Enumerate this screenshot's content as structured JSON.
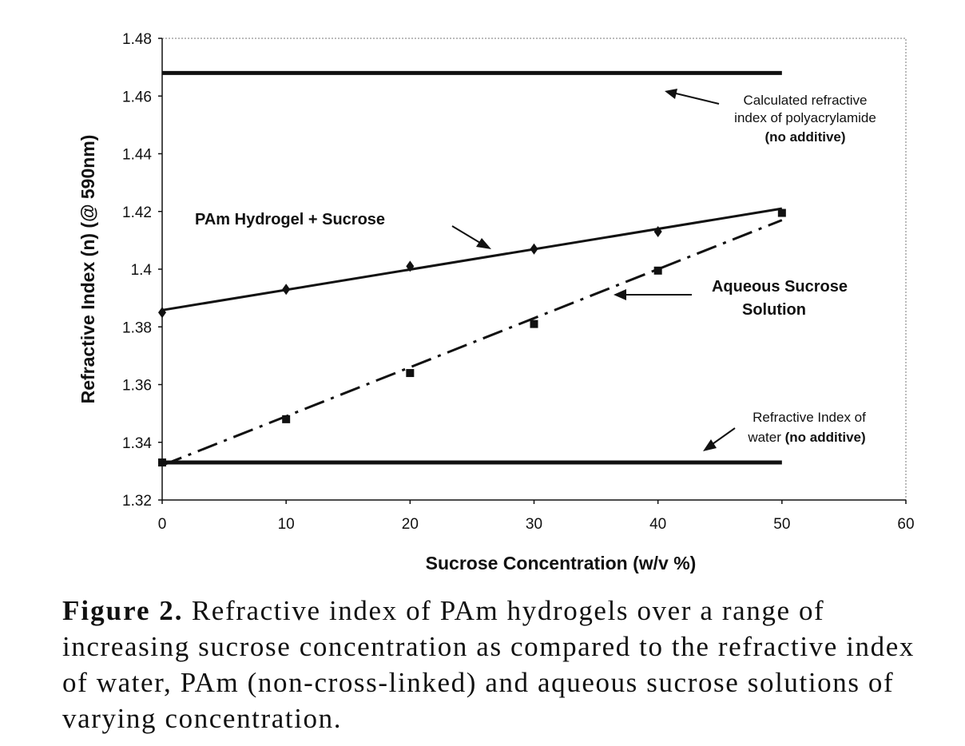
{
  "chart_data": {
    "type": "line",
    "xlabel": "Sucrose Concentration (w/v %)",
    "ylabel": "Refractive Index (n) (@ 590nm)",
    "xlim": [
      0,
      60
    ],
    "ylim": [
      1.32,
      1.48
    ],
    "x_ticks": [
      0,
      10,
      20,
      30,
      40,
      50,
      60
    ],
    "y_ticks": [
      1.32,
      1.34,
      1.36,
      1.38,
      1.4,
      1.42,
      1.44,
      1.46,
      1.48
    ],
    "x_tick_labels": [
      "0",
      "10",
      "20",
      "30",
      "40",
      "50",
      "60"
    ],
    "y_tick_labels": [
      "1.32",
      "1.34",
      "1.36",
      "1.38",
      "1.4",
      "1.42",
      "1.44",
      "1.46",
      "1.48"
    ],
    "grid": false,
    "series": [
      {
        "name": "PAm Hydrogel + Sucrose",
        "marker": "diamond",
        "x": [
          0,
          10,
          20,
          30,
          40
        ],
        "y": [
          1.385,
          1.393,
          1.401,
          1.407,
          1.413
        ],
        "fit": {
          "x": [
            0,
            50
          ],
          "y": [
            1.3858,
            1.421
          ],
          "style": "solid"
        }
      },
      {
        "name": "Aqueous Sucrose Solution",
        "marker": "square",
        "x": [
          0,
          10,
          20,
          30,
          40,
          50
        ],
        "y": [
          1.333,
          1.348,
          1.364,
          1.381,
          1.3995,
          1.4195
        ],
        "fit": {
          "x": [
            0,
            50
          ],
          "y": [
            1.332,
            1.417
          ],
          "style": "dash-dot"
        }
      },
      {
        "name": "Calculated refractive index of polyacrylamide (no additive)",
        "marker": "none",
        "x": [
          0,
          50
        ],
        "y": [
          1.468,
          1.468
        ],
        "style": "thick"
      },
      {
        "name": "Refractive Index of water (no additive)",
        "marker": "none",
        "x": [
          0,
          50
        ],
        "y": [
          1.333,
          1.333
        ],
        "style": "thick"
      }
    ],
    "annotations": {
      "pam_lines": [
        "Calculated refractive",
        "index of polyacrylamide",
        "(no additive)"
      ],
      "pam_line3_bold": true,
      "hydrogel": "PAm Hydrogel + Sucrose",
      "aqueous_lines": [
        "Aqueous Sucrose",
        "Solution"
      ],
      "water_line1": "Refractive Index of",
      "water_line2_plain": "water ",
      "water_line2_bold": "(no additive)"
    }
  },
  "caption": {
    "label": "Figure 2.",
    "text": " Refractive index of PAm hydrogels over a range of increasing sucrose concentration as compared to the refractive index of water, PAm (non-cross-linked) and aqueous sucrose solutions of varying concentration."
  }
}
